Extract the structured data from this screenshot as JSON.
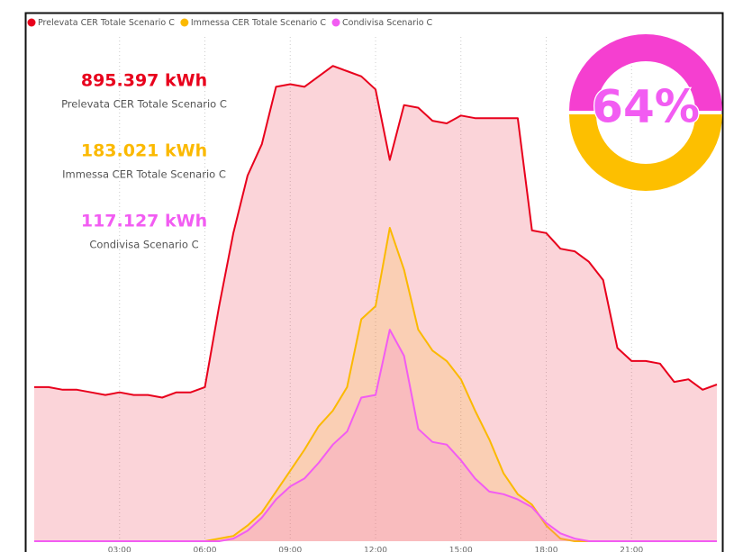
{
  "chart_data": {
    "type": "area",
    "x": [
      0,
      0.5,
      1,
      1.5,
      2,
      2.5,
      3,
      3.5,
      4,
      4.5,
      5,
      5.5,
      6,
      6.5,
      7,
      7.5,
      8,
      8.5,
      9,
      9.5,
      10,
      10.5,
      11,
      11.5,
      12,
      12.5,
      13,
      13.5,
      14,
      14.5,
      15,
      15.5,
      16,
      16.5,
      17,
      17.5,
      18,
      18.5,
      19,
      19.5,
      20,
      20.5,
      21,
      21.5,
      22,
      22.5,
      23,
      23.5,
      24
    ],
    "series": [
      {
        "name": "Prelevata CER Totale Scenario C",
        "color": "#e8001c",
        "values": [
          5.9,
          5.9,
          5.8,
          5.8,
          5.7,
          5.6,
          5.7,
          5.6,
          5.6,
          5.5,
          5.7,
          5.7,
          5.9,
          9.0,
          11.8,
          14.0,
          15.2,
          17.4,
          17.5,
          17.4,
          17.8,
          18.2,
          18.0,
          17.8,
          17.3,
          14.6,
          16.7,
          16.6,
          16.1,
          16.0,
          16.3,
          16.2,
          16.2,
          16.2,
          16.2,
          11.9,
          11.8,
          11.2,
          11.1,
          10.7,
          10.0,
          7.4,
          6.9,
          6.9,
          6.8,
          6.1,
          6.2,
          5.8,
          6.0
        ]
      },
      {
        "name": "Immessa CER Totale Scenario C",
        "color": "#fbb900",
        "values": [
          0,
          0,
          0,
          0,
          0,
          0,
          0,
          0,
          0,
          0,
          0,
          0,
          0,
          0.1,
          0.2,
          0.6,
          1.1,
          1.9,
          2.7,
          3.5,
          4.4,
          5.0,
          5.9,
          8.5,
          9.0,
          12.0,
          10.4,
          8.1,
          7.3,
          6.9,
          6.2,
          5.0,
          3.9,
          2.6,
          1.8,
          1.4,
          0.6,
          0.1,
          0,
          0,
          0,
          0,
          0,
          0,
          0,
          0,
          0,
          0,
          0
        ]
      },
      {
        "name": "Condivisa Scenario C",
        "color": "#f25cf2",
        "values": [
          0,
          0,
          0,
          0,
          0,
          0,
          0,
          0,
          0,
          0,
          0,
          0,
          0,
          0,
          0.1,
          0.4,
          0.9,
          1.6,
          2.1,
          2.4,
          3.0,
          3.7,
          4.2,
          5.5,
          5.6,
          8.1,
          7.1,
          4.3,
          3.8,
          3.7,
          3.1,
          2.4,
          1.9,
          1.8,
          1.6,
          1.3,
          0.7,
          0.3,
          0.1,
          0,
          0,
          0,
          0,
          0,
          0,
          0,
          0,
          0,
          0
        ]
      }
    ],
    "xlim": [
      0,
      24
    ],
    "xticks": [
      {
        "value": 3,
        "label": "03:00"
      },
      {
        "value": 6,
        "label": "06:00"
      },
      {
        "value": 9,
        "label": "09:00"
      },
      {
        "value": 12,
        "label": "12:00"
      },
      {
        "value": 15,
        "label": "15:00"
      },
      {
        "value": 18,
        "label": "18:00"
      },
      {
        "value": 21,
        "label": "21:00"
      }
    ],
    "ylim": [
      0,
      20
    ],
    "grid": true,
    "legend": "top-left"
  },
  "kpis": [
    {
      "value": "895.397 kWh",
      "label": "Prelevata CER Totale Scenario C",
      "color": "#e8001c"
    },
    {
      "value": "183.021 kWh",
      "label": "Immessa CER Totale Scenario C",
      "color": "#fbb900"
    },
    {
      "value": "117.127 kWh",
      "label": "Condivisa Scenario C",
      "color": "#f25cf2"
    }
  ],
  "gauge": {
    "label": "64%"
  }
}
